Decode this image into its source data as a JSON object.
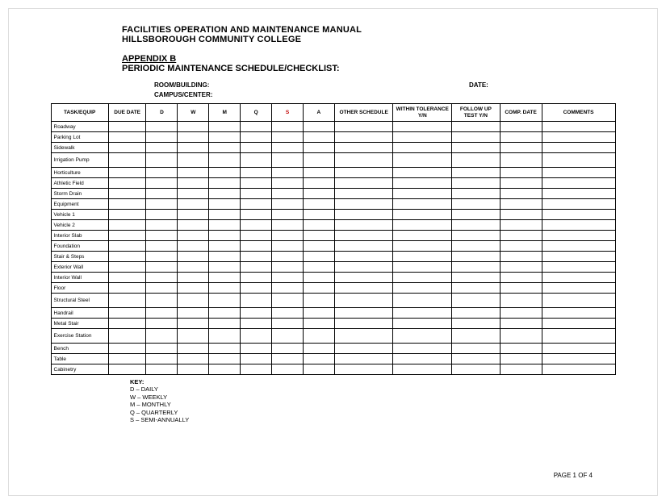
{
  "document": {
    "title_line1": "FACILITIES OPERATION AND MAINTENANCE MANUAL",
    "title_line2": "HILLSBOROUGH COMMUNITY COLLEGE",
    "appendix": "APPENDIX B",
    "subtitle": "PERIODIC MAINTENANCE SCHEDULE/CHECKLIST:",
    "field_room": "ROOM/BUILDING:",
    "field_date": "DATE:",
    "field_campus": "CAMPUS/CENTER:",
    "page_number": "PAGE 1 OF 4"
  },
  "table": {
    "headers": {
      "task": "TASK/EQUIP",
      "due": "DUE DATE",
      "d": "D",
      "w": "W",
      "m": "M",
      "q": "Q",
      "s": "S",
      "a": "A",
      "other": "OTHER SCHEDULE",
      "tolerance": "WITHIN TOLERANCE Y/N",
      "follow": "FOLLOW UP TEST Y/N",
      "comp": "COMP. DATE",
      "comments": "COMMENTS"
    },
    "rows": [
      {
        "task": "Roadway",
        "multi": false
      },
      {
        "task": "Parking Lot",
        "multi": false
      },
      {
        "task": "Sidewalk",
        "multi": false
      },
      {
        "task": "Irrigation Pump",
        "multi": true
      },
      {
        "task": "Horticulture",
        "multi": false
      },
      {
        "task": "Athletic Field",
        "multi": false
      },
      {
        "task": "Storm Drain",
        "multi": false
      },
      {
        "task": "Equipment",
        "multi": false
      },
      {
        "task": "Vehicle 1",
        "multi": false
      },
      {
        "task": "Vehicle 2",
        "multi": false
      },
      {
        "task": "Interior Slab",
        "multi": false
      },
      {
        "task": "Foundation",
        "multi": false
      },
      {
        "task": "Stair & Steps",
        "multi": false
      },
      {
        "task": "Exterior Wall",
        "multi": false
      },
      {
        "task": "Interior Wall",
        "multi": false
      },
      {
        "task": "Floor",
        "multi": false
      },
      {
        "task": "Structural Steel",
        "multi": true
      },
      {
        "task": "Handrail",
        "multi": false
      },
      {
        "task": "Metal Stair",
        "multi": false
      },
      {
        "task": "Exercise Station",
        "multi": true
      },
      {
        "task": "Bench",
        "multi": false
      },
      {
        "task": "Table",
        "multi": false
      },
      {
        "task": "Cabinetry",
        "multi": false
      }
    ]
  },
  "key": {
    "title": "KEY:",
    "d": "D – DAILY",
    "w": "W – WEEKLY",
    "m": "M – MONTHLY",
    "q": "Q – QUARTERLY",
    "s": "S – SEMI-ANNUALLY"
  }
}
